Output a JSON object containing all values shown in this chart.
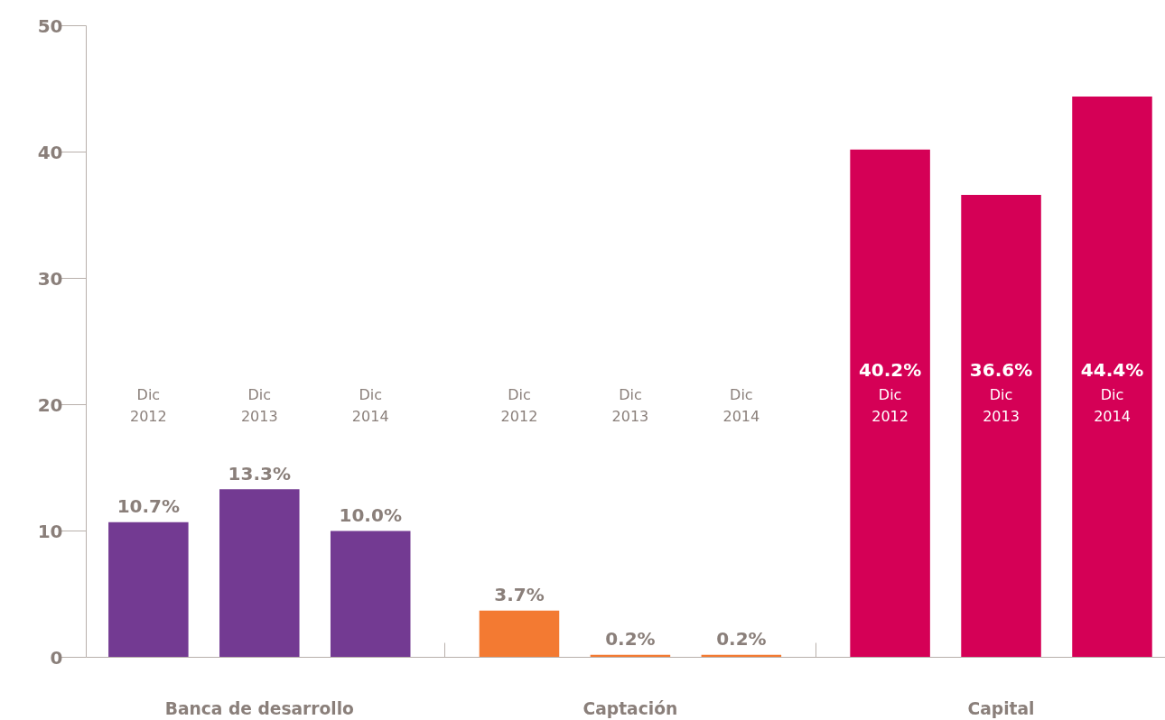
{
  "chart_data": {
    "type": "bar",
    "categories": [
      "Dic\n2012",
      "Dic\n2013",
      "Dic\n2014",
      "Dic\n2012",
      "Dic\n2013",
      "Dic\n2014",
      "Dic\n2012",
      "Dic\n2013",
      "Dic\n2014"
    ],
    "series": [
      {
        "name": "Banca de desarrollo",
        "color": "#733a92",
        "values": [
          10.7,
          13.3,
          10.0,
          null,
          null,
          null,
          null,
          null,
          null
        ],
        "value_labels": [
          "10.7%",
          "13.3%",
          "10.0%",
          null,
          null,
          null,
          null,
          null,
          null
        ]
      },
      {
        "name": "Captación",
        "color": "#f37a32",
        "values": [
          null,
          null,
          null,
          3.7,
          0.2,
          0.2,
          null,
          null,
          null
        ],
        "value_labels": [
          null,
          null,
          null,
          "3.7%",
          "0.2%",
          "0.2%",
          null,
          null,
          null
        ]
      },
      {
        "name": "Capital",
        "color": "#d50056",
        "values": [
          null,
          null,
          null,
          null,
          null,
          null,
          40.2,
          36.6,
          44.4
        ],
        "value_labels": [
          null,
          null,
          null,
          null,
          null,
          null,
          "40.2%",
          "36.6%",
          "44.4%"
        ]
      }
    ],
    "ylim": [
      0,
      50
    ],
    "yticks": [
      0,
      10,
      20,
      30,
      40,
      50
    ],
    "grid": false
  }
}
